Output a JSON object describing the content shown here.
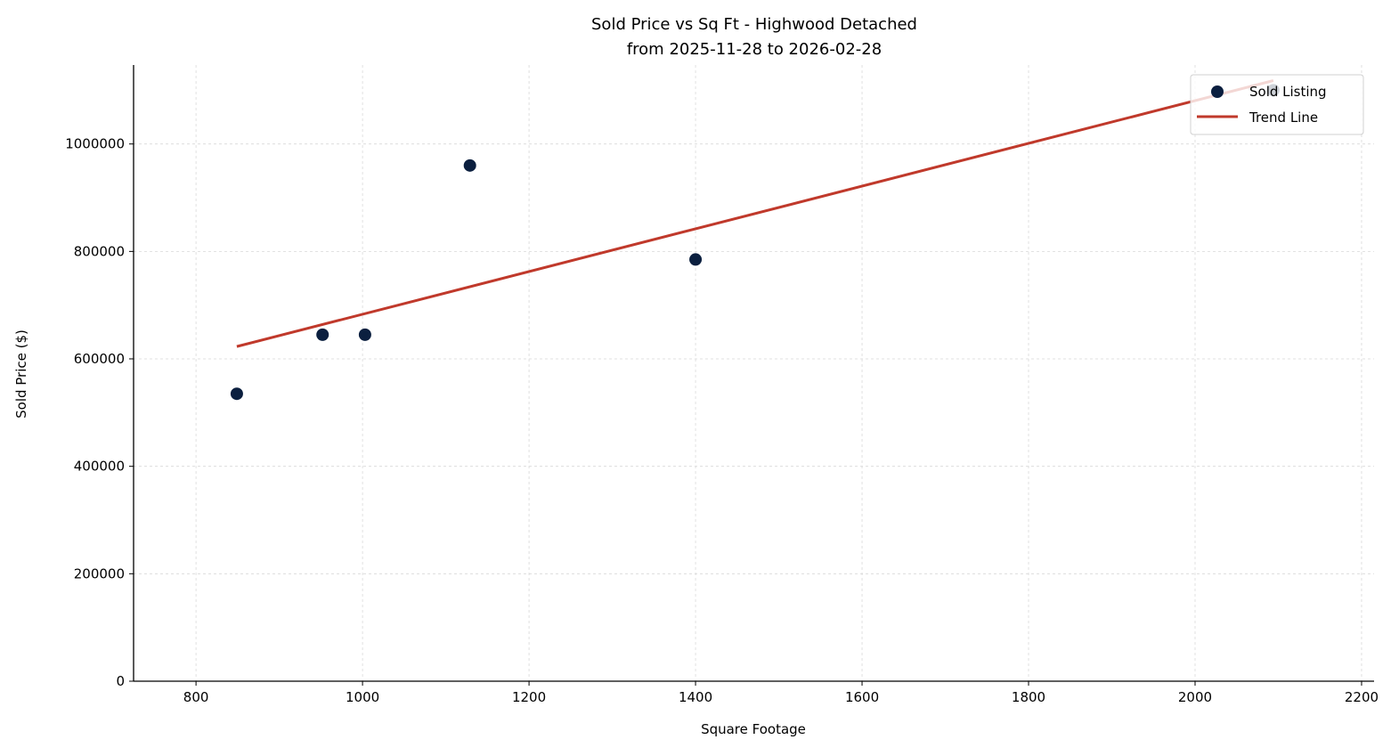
{
  "chart_data": {
    "type": "scatter",
    "title": "Sold Price vs Sq Ft - Highwood Detached",
    "subtitle": "from 2025-11-28 to 2026-02-28",
    "xlabel": "Square Footage",
    "ylabel": "Sold Price ($)",
    "xlim": [
      725,
      2215
    ],
    "ylim": [
      0,
      1147000
    ],
    "xticks": [
      "800",
      "1000",
      "1200",
      "1400",
      "1600",
      "1800",
      "2000",
      "2200"
    ],
    "yticks": [
      "0",
      "200000",
      "400000",
      "600000",
      "800000",
      "1000000"
    ],
    "grid": true,
    "legend_position": "top-right",
    "series": [
      {
        "name": "Sold Listing",
        "type": "scatter",
        "color": "#0b1f3f",
        "points": [
          [
            849,
            535000
          ],
          [
            952,
            645000
          ],
          [
            1003,
            645000
          ],
          [
            1129,
            960000
          ],
          [
            1400,
            785000
          ],
          [
            2094,
            1100000
          ]
        ]
      },
      {
        "name": "Trend Line",
        "type": "line",
        "color": "#c0392b",
        "points": [
          [
            849,
            623000
          ],
          [
            2094,
            1118000
          ]
        ]
      }
    ]
  }
}
